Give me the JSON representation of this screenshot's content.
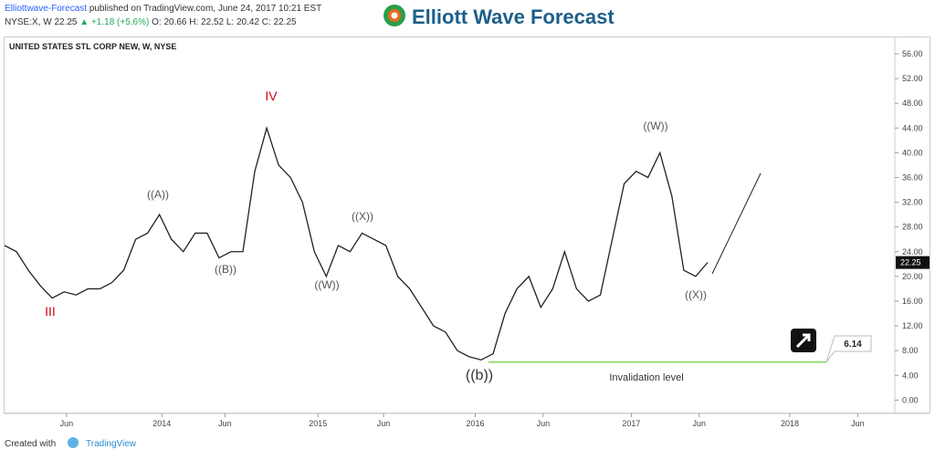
{
  "header": {
    "publisher": "Elliottwave-Forecast",
    "published": "published on TradingView.com, June 24, 2017 10:21 EST",
    "symbol": "NYSE:X, W",
    "price": "22.25",
    "change": "▲ +1.18 (+5.6%)",
    "ohlc": "O: 20.66 H: 22.52 L: 20.42 C: 22.25",
    "logo": "Elliott Wave Forecast"
  },
  "footer": {
    "created": "Created with",
    "brand": "TradingView"
  },
  "chart_data": {
    "type": "line",
    "title": "UNITED STATES STL CORP NEW, W, NYSE",
    "color": "#222222",
    "values": [
      25,
      24,
      21,
      18.5,
      16.5,
      17.5,
      17,
      18,
      18,
      19,
      21,
      26,
      27,
      30,
      26,
      24,
      27,
      27,
      23,
      24,
      24,
      37,
      44,
      38,
      36,
      32,
      24,
      20,
      25,
      24,
      27,
      26,
      25,
      20,
      18,
      15,
      12,
      11,
      8,
      7,
      6.5,
      7.5,
      14,
      18,
      20,
      15,
      18,
      24,
      18,
      16,
      17,
      26,
      35,
      37,
      36,
      40,
      33,
      21,
      20,
      22.25
    ],
    "xlim": [
      0,
      74.33
    ],
    "xticks": [
      {
        "value": 5.2,
        "label": "Jun"
      },
      {
        "value": 13.2,
        "label": "2014"
      },
      {
        "value": 18.5,
        "label": "Jun"
      },
      {
        "value": 26.3,
        "label": "2015"
      },
      {
        "value": 31.8,
        "label": "Jun"
      },
      {
        "value": 39.5,
        "label": "2016"
      },
      {
        "value": 45.2,
        "label": "Jun"
      },
      {
        "value": 52.6,
        "label": "2017"
      },
      {
        "value": 58.3,
        "label": "Jun"
      },
      {
        "value": 65.9,
        "label": "2018"
      },
      {
        "value": 71.6,
        "label": "Jun"
      }
    ],
    "ylim": [
      -2.16,
      58.8
    ],
    "yticks": [
      {
        "value": 0,
        "label": "0.00"
      },
      {
        "value": 4,
        "label": "4.00"
      },
      {
        "value": 8,
        "label": "8.00"
      },
      {
        "value": 12,
        "label": "12.00"
      },
      {
        "value": 16,
        "label": "16.00"
      },
      {
        "value": 20,
        "label": "20.00"
      },
      {
        "value": 24,
        "label": "24.00"
      },
      {
        "value": 28,
        "label": "28.00"
      },
      {
        "value": 32,
        "label": "32.00"
      },
      {
        "value": 36,
        "label": "36.00"
      },
      {
        "value": 40,
        "label": "40.00"
      },
      {
        "value": 44,
        "label": "44.00"
      },
      {
        "value": 48,
        "label": "48.00"
      },
      {
        "value": 52,
        "label": "52.00"
      },
      {
        "value": 56,
        "label": "56.00"
      }
    ],
    "waves": [
      "III",
      "IV",
      "((A))",
      "((B))",
      "((W))",
      "((X))",
      "((b))",
      "((W))",
      "((X))"
    ],
    "invalidation": {
      "value": 6.14,
      "label": "6.14",
      "text": "Invalidation level"
    }
  }
}
